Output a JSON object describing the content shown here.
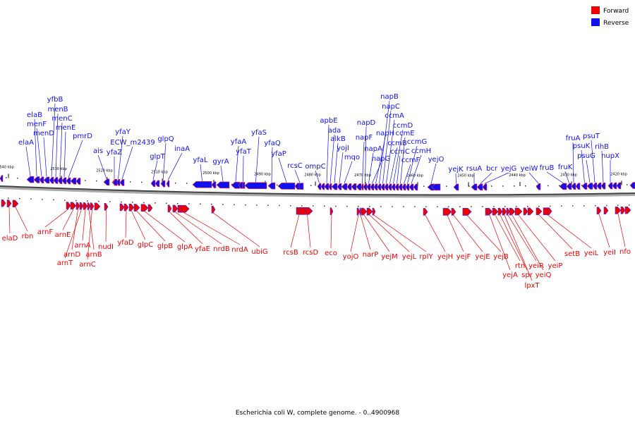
{
  "legend": {
    "forward": {
      "label": "Forward",
      "color": "#ee0000"
    },
    "reverse": {
      "label": "Reverse",
      "color": "#1010ee"
    }
  },
  "caption": "Escherichia coli W, complete genome. - 0..4900968",
  "axis": {
    "ticks": [
      "2540 kbp",
      "2530 kbp",
      "2520 kbp",
      "2510 kbp",
      "2500 kbp",
      "2490 kbp",
      "2480 kbp",
      "2470 kbp",
      "2460 kbp",
      "2450 kbp",
      "2440 kbp",
      "2430 kbp",
      "2420 kbp"
    ]
  },
  "reverse_genes": [
    "elaA",
    "elaB",
    "menF",
    "menD",
    "yfbB",
    "menB",
    "menC",
    "menE",
    "pmrD",
    "ais",
    "yfaZ",
    "yfaY",
    "ECW_m2439",
    "glpT",
    "glpQ",
    "inaA",
    "yfaL",
    "gyrA",
    "yfaA",
    "yfaT",
    "yfaS",
    "yfaQ",
    "yfaP",
    "rcsC",
    "ompC",
    "apbE",
    "ada",
    "alkB",
    "yojI",
    "mqo",
    "napF",
    "napD",
    "napA",
    "napG",
    "napH",
    "napB",
    "napC",
    "ccmA",
    "ccmB",
    "ccmD",
    "ccmC",
    "ccmE",
    "ccmF",
    "ccmG",
    "ccmH",
    "yejO",
    "yejK",
    "rsuA",
    "bcr",
    "yejG",
    "yeiW",
    "fruB",
    "fruK",
    "fruA",
    "psuK",
    "psuG",
    "psuT",
    "rihB",
    "nupX"
  ],
  "forward_genes": [
    "elaD",
    "rbn",
    "arnF",
    "arnE",
    "arnD",
    "arnT",
    "arnA",
    "arnB",
    "arnC",
    "nudI",
    "yfaD",
    "glpC",
    "glpB",
    "glpA",
    "yfaE",
    "nrdB",
    "nrdA",
    "ubiG",
    "rcsB",
    "rcsD",
    "eco",
    "yojO",
    "narP",
    "yejM",
    "yejL",
    "rplY",
    "yejH",
    "yejF",
    "yejE",
    "yejB",
    "yejA",
    "rtn",
    "spr",
    "lpxT",
    "yeiR",
    "yeiQ",
    "yeiP",
    "setB",
    "yeiL",
    "yeiI",
    "nfo"
  ]
}
